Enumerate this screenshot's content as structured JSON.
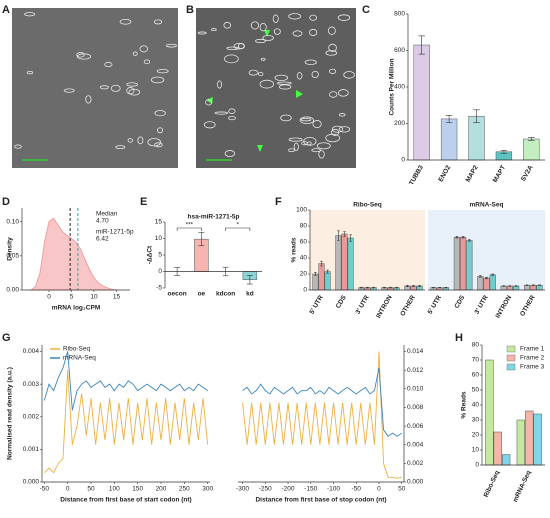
{
  "panel_labels": [
    "A",
    "B",
    "C",
    "D",
    "E",
    "F",
    "G",
    "H"
  ],
  "chart_data": [
    {
      "type": "bar",
      "ylabel": "Counts Per Million",
      "categories": [
        "TUBB3",
        "ENO2",
        "MAP2",
        "MAPT",
        "SV2A"
      ],
      "series": [
        {
          "values": [
            630,
            225,
            240,
            45,
            115
          ],
          "errors": [
            50,
            20,
            35,
            8,
            8
          ],
          "colors": [
            "#dccbe6",
            "#bcd0ee",
            "#b3e0dc",
            "#5dc4c0",
            "#c2eec0"
          ]
        }
      ],
      "ylim": [
        0,
        800
      ],
      "yticks": [
        0,
        200,
        400,
        600,
        800
      ]
    },
    {
      "type": "area",
      "xlabel": "mRNA log₂CPM",
      "ylabel": "Density",
      "color": "#f3a0a0",
      "x": [
        -4,
        -3,
        -2,
        -1,
        0,
        1,
        2,
        3,
        4,
        5,
        6,
        7,
        8,
        9,
        10,
        11,
        12,
        13,
        14,
        15
      ],
      "values": [
        0,
        0.005,
        0.025,
        0.07,
        0.1,
        0.105,
        0.095,
        0.085,
        0.08,
        0.075,
        0.07,
        0.06,
        0.045,
        0.03,
        0.018,
        0.01,
        0.006,
        0.003,
        0.001,
        0
      ],
      "annotations": [
        {
          "text": "Median",
          "value": 4.7,
          "label": "4.70",
          "color": "#222"
        },
        {
          "text": "miR-1271-5p",
          "value": 6.42,
          "label": "6.42",
          "color": "#2aa9b0"
        }
      ],
      "xlim": [
        -6,
        18
      ],
      "xticks": [
        0,
        5,
        10,
        15
      ],
      "ylim": [
        0,
        0.12
      ],
      "yticks": [
        {
          "value": 0,
          "label": "0.00"
        },
        0.05,
        {
          "value": 0.1,
          "label": "0.10"
        }
      ]
    },
    {
      "type": "bar",
      "title": "hsa-miR-1271-5p",
      "ylabel": "-ΔΔCt",
      "categories": [
        "oecon",
        "oe",
        "kdcon",
        "kd"
      ],
      "series": [
        {
          "values": [
            0,
            9.8,
            0,
            -2.5
          ],
          "errors": [
            1.2,
            2,
            1.3,
            1.3
          ],
          "colors": [
            "#ffffff",
            "#f7b5b0",
            "#ffffff",
            "#8ad6d6"
          ]
        }
      ],
      "annotations": [
        {
          "text": "***"
        },
        {
          "text": "*"
        }
      ],
      "ylim": [
        -5,
        15
      ],
      "yticks": [
        -5,
        0,
        5,
        10,
        15
      ]
    },
    {
      "type": "bar",
      "title": "Ribo-Seq",
      "ylabel": "% reads",
      "background": "#fcefe1",
      "categories": [
        "5' UTR",
        "CDS",
        "3' UTR",
        "INTRON",
        "OTHER"
      ],
      "series": [
        {
          "values": [
            20,
            68,
            3,
            3,
            5
          ],
          "errors": [
            2,
            6,
            0.5,
            0.5,
            0.8
          ],
          "color": "#b8b8b8"
        },
        {
          "values": [
            33,
            70,
            3,
            3,
            5
          ],
          "errors": [
            3,
            3,
            0.5,
            0.5,
            0.8
          ],
          "color": "#e89a9a"
        },
        {
          "values": [
            23,
            65,
            3,
            3,
            5
          ],
          "errors": [
            2,
            4,
            0.5,
            0.5,
            0.8
          ],
          "color": "#6fcfcf"
        }
      ],
      "ylim": [
        0,
        100
      ],
      "yticks": [
        0,
        20,
        40,
        60,
        80,
        100
      ]
    },
    {
      "type": "bar",
      "title": "mRNA-Seq",
      "background": "#e8f1fa",
      "categories": [
        "5' UTR",
        "CDS",
        "3' UTR",
        "INTRON",
        "OTHER"
      ],
      "series": [
        {
          "values": [
            3,
            66,
            17,
            5,
            6
          ],
          "errors": [
            0.4,
            1,
            1,
            0.4,
            0.4
          ],
          "color": "#b8b8b8"
        },
        {
          "values": [
            3,
            66,
            15,
            5,
            6
          ],
          "errors": [
            0.4,
            1,
            1,
            0.4,
            0.4
          ],
          "color": "#e89a9a"
        },
        {
          "values": [
            3,
            62,
            19,
            5,
            6
          ],
          "errors": [
            0.4,
            1,
            1,
            0.4,
            0.4
          ],
          "color": "#6fcfcf"
        }
      ],
      "ylim": [
        0,
        100
      ]
    },
    {
      "type": "line",
      "ylabel": "Normalised read density (a.u.)",
      "xlabel": "Distance from first base of start codon (nt)",
      "legend": "top-left",
      "x": [
        -50,
        -40,
        -30,
        -20,
        -10,
        0,
        10,
        20,
        30,
        40,
        50,
        60,
        70,
        80,
        90,
        100,
        110,
        120,
        130,
        140,
        150,
        160,
        170,
        180,
        190,
        200,
        210,
        220,
        230,
        240,
        250,
        260,
        270,
        280,
        290,
        300
      ],
      "series": [
        {
          "name": "Ribo-Seq",
          "color": "#f0b040",
          "axis": "y2",
          "values": [
            0.001,
            0.0015,
            0.001,
            0.002,
            0.0025,
            0.012,
            0.004,
            0.006,
            0.0095,
            0.005,
            0.009,
            0.004,
            0.0085,
            0.0045,
            0.009,
            0.004,
            0.0085,
            0.0045,
            0.009,
            0.004,
            0.0085,
            0.0045,
            0.009,
            0.004,
            0.0085,
            0.0045,
            0.009,
            0.004,
            0.0085,
            0.0045,
            0.009,
            0.004,
            0.0085,
            0.0045,
            0.009,
            0.004
          ]
        },
        {
          "name": "mRNA-Seq",
          "color": "#3a85c0",
          "values": [
            0.0025,
            0.003,
            0.0028,
            0.0032,
            0.0035,
            0.004,
            0.0022,
            0.0028,
            0.003,
            0.0031,
            0.0029,
            0.003,
            0.0031,
            0.0029,
            0.003,
            0.0028,
            0.003,
            0.0029,
            0.0031,
            0.003,
            0.0028,
            0.0029,
            0.003,
            0.0029,
            0.0028,
            0.003,
            0.0029,
            0.0028,
            0.0029,
            0.003,
            0.0028,
            0.0029,
            0.0028,
            0.003,
            0.0029,
            0.0028
          ]
        }
      ],
      "xlim": [
        -55,
        305
      ],
      "xticks": [
        -50,
        0,
        50,
        100,
        150,
        200,
        250,
        300
      ],
      "ylim": [
        0,
        0.0042
      ],
      "yticks": [
        {
          "value": 0,
          "label": "0.000"
        },
        0.001,
        0.002,
        0.003,
        0.004
      ],
      "y2lim": [
        0,
        0.0147
      ]
    },
    {
      "type": "line",
      "xlabel": "Distance from first base of stop codon (nt)",
      "x": [
        -300,
        -290,
        -280,
        -270,
        -260,
        -250,
        -240,
        -230,
        -220,
        -210,
        -200,
        -190,
        -180,
        -170,
        -160,
        -150,
        -140,
        -130,
        -120,
        -110,
        -100,
        -90,
        -80,
        -70,
        -60,
        -50,
        -40,
        -30,
        -20,
        -10,
        0,
        10,
        20,
        30,
        40,
        50
      ],
      "series": [
        {
          "color": "#f0b040",
          "axis": "y2",
          "values": [
            0.0085,
            0.004,
            0.0085,
            0.004,
            0.0085,
            0.004,
            0.0085,
            0.004,
            0.0085,
            0.004,
            0.0085,
            0.004,
            0.0085,
            0.004,
            0.0085,
            0.004,
            0.0085,
            0.004,
            0.0085,
            0.004,
            0.0085,
            0.004,
            0.0085,
            0.004,
            0.0085,
            0.004,
            0.0085,
            0.004,
            0.0085,
            0.004,
            0.014,
            0.002,
            0.0005,
            0.0005,
            0.0004,
            0.0005
          ]
        },
        {
          "color": "#3a85c0",
          "values": [
            0.0028,
            0.0029,
            0.0027,
            0.0028,
            0.003,
            0.0028,
            0.0027,
            0.0029,
            0.0028,
            0.0027,
            0.0028,
            0.0029,
            0.0027,
            0.0028,
            0.0028,
            0.0029,
            0.0027,
            0.0028,
            0.0027,
            0.0029,
            0.0028,
            0.0027,
            0.0028,
            0.0029,
            0.0028,
            0.0027,
            0.0028,
            0.0029,
            0.0027,
            0.0028,
            0.0035,
            0.0016,
            0.0014,
            0.0015,
            0.0014,
            0.0015
          ]
        }
      ],
      "xlim": [
        -310,
        55
      ],
      "xticks": [
        -300,
        -250,
        -200,
        -150,
        -100,
        -50,
        0,
        50
      ],
      "ylim": [
        0,
        0.0042
      ],
      "y2lim": [
        0,
        0.0147
      ],
      "y2ticks": [
        {
          "value": 0,
          "label": "0.000"
        },
        0.002,
        0.004,
        0.006,
        0.008,
        {
          "value": 0.01,
          "label": "0.010"
        },
        0.012,
        0.014
      ]
    },
    {
      "type": "bar",
      "ylabel": "% Reads",
      "legend": "top-right",
      "categories": [
        "Ribo-Seq",
        "mRNA-Seq"
      ],
      "series": [
        {
          "name": "Frame 1",
          "color": "#c5e8a0",
          "values": [
            70,
            30
          ]
        },
        {
          "name": "Frame 2",
          "color": "#f4b6a8",
          "values": [
            22,
            36
          ]
        },
        {
          "name": "Frame 3",
          "color": "#7fd6e6",
          "values": [
            7,
            34
          ]
        }
      ],
      "ylim": [
        0,
        80
      ],
      "yticks": [
        0,
        10,
        20,
        30,
        40,
        50,
        60,
        70,
        80
      ]
    }
  ]
}
